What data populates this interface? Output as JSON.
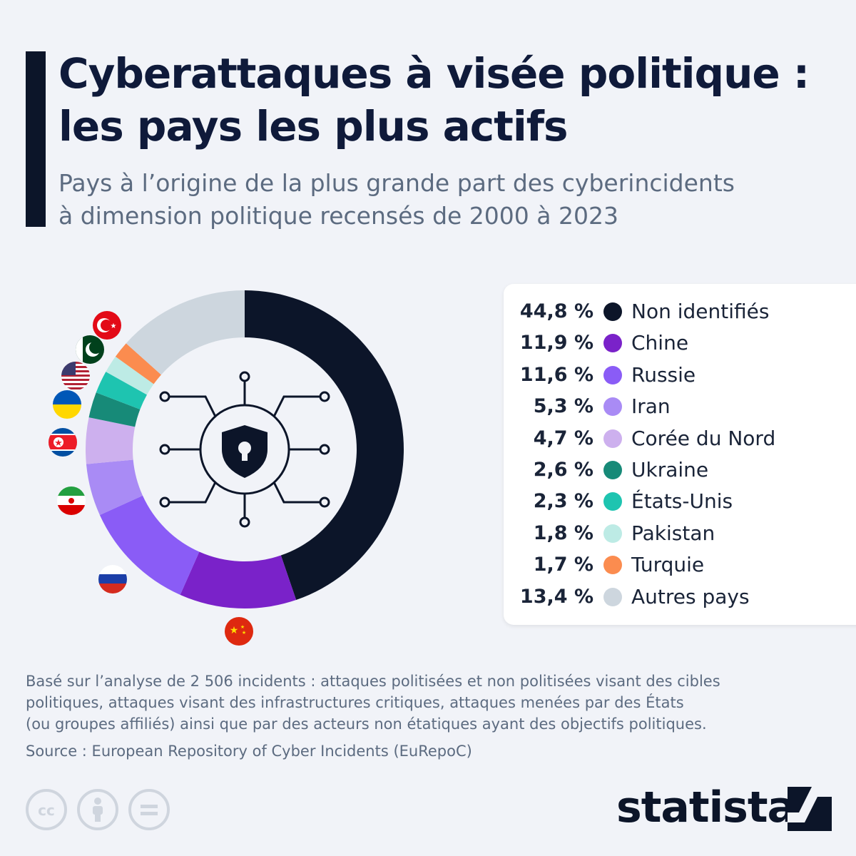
{
  "header": {
    "title_line1": "Cyberattaques à visée politique :",
    "title_line2": "les pays les plus actifs",
    "subtitle_line1": "Pays à l’origine de la plus grande part des cyberincidents",
    "subtitle_line2": "à dimension politique recensés de 2000 à 2023"
  },
  "chart_data": {
    "type": "pie",
    "title": "Cyberattaques à visée politique : les pays les plus actifs",
    "subtitle": "Pays à l’origine de la plus grande part des cyberincidents à dimension politique recensés de 2000 à 2023",
    "categories": [
      "Non identifiés",
      "Chine",
      "Russie",
      "Iran",
      "Corée du Nord",
      "Ukraine",
      "États-Unis",
      "Pakistan",
      "Turquie",
      "Autres pays"
    ],
    "values": [
      44.8,
      11.9,
      11.6,
      5.3,
      4.7,
      2.6,
      2.3,
      1.8,
      1.7,
      13.4
    ],
    "labels": [
      "44,8 %",
      "11,9 %",
      "11,6 %",
      "5,3 %",
      "4,7 %",
      "2,6 %",
      "2,3 %",
      "1,8 %",
      "1,7 %",
      "13,4 %"
    ],
    "colors": [
      "#0c1529",
      "#7a22c9",
      "#8a5cf6",
      "#a98bf5",
      "#cdb0ee",
      "#178a78",
      "#1ec4b0",
      "#bdebe5",
      "#fb8c4f",
      "#cdd6de"
    ],
    "flags": [
      "",
      "china-flag",
      "russia-flag",
      "iran-flag",
      "north-korea-flag",
      "ukraine-flag",
      "usa-flag",
      "pakistan-flag",
      "turkey-flag",
      ""
    ],
    "center_icon": "shield-lock-circuit-icon",
    "legend_position": "right",
    "unit": "%"
  },
  "footer": {
    "note_line1": "Basé sur l’analyse de 2 506 incidents : attaques politisées et non politisées visant des cibles",
    "note_line2": "politiques, attaques visant des infrastructures critiques, attaques menées par des États",
    "note_line3": "(ou groupes affiliés) ainsi que par des acteurs non étatiques ayant des objectifs politiques.",
    "source": "Source : European Repository of Cyber Incidents (EuRepoC)",
    "license_icons": [
      "cc-icon",
      "attribution-icon",
      "no-derivatives-icon"
    ],
    "brand": "statista",
    "brand_icon": "statista-logo-icon"
  }
}
